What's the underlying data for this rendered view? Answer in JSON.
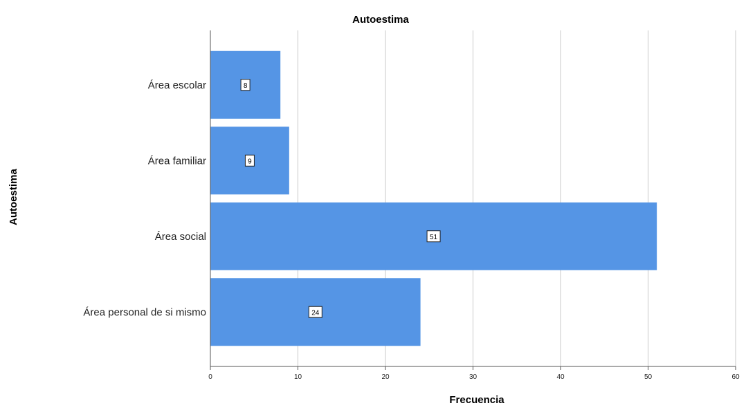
{
  "chart_data": {
    "type": "bar",
    "orientation": "horizontal",
    "title": "Autoestima",
    "xlabel": "Frecuencia",
    "ylabel": "Autoestima",
    "categories": [
      "Área escolar",
      "Área familiar",
      "Área social",
      "Área personal de si mismo"
    ],
    "values": [
      8,
      9,
      51,
      24
    ],
    "xlim": [
      0,
      60
    ],
    "xticks": [
      0,
      10,
      20,
      30,
      40,
      50,
      60
    ],
    "grid": true,
    "legend": "none",
    "bar_color": "#5595E5"
  }
}
